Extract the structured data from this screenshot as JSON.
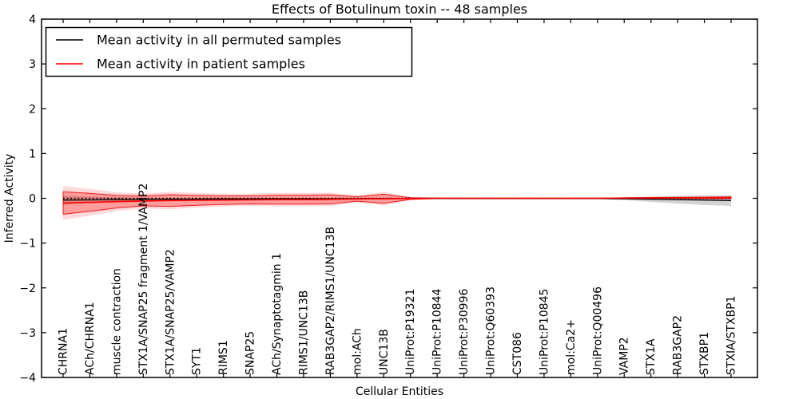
{
  "figure": {
    "background": "#ffffff",
    "frame_color": "#000000"
  },
  "chart_data": {
    "type": "line",
    "title": "Effects of Botulinum toxin -- 48 samples",
    "xlabel": "Cellular Entities",
    "ylabel": "Inferred Activity",
    "ylim": [
      -4,
      4
    ],
    "ytick_values": [
      4,
      3,
      2,
      1,
      0,
      -1,
      -2,
      -3,
      -4
    ],
    "grid": false,
    "legend_position": "upper-left",
    "categories": [
      "CHRNA1",
      "ACh/CHRNA1",
      "muscle contraction",
      "STX1A/SNAP25 fragment 1/VAMP2",
      "STX1A/SNAP25/VAMP2",
      "SYT1",
      "RIMS1",
      "SNAP25",
      "ACh/Synaptotagmin 1",
      "RIMS1/UNC13B",
      "RAB3GAP2/RIMS1/UNC13B",
      "mol:ACh",
      "UNC13B",
      "UniProt:P19321",
      "UniProt:P10844",
      "UniProt:P30996",
      "UniProt:Q60393",
      "CST086",
      "UniProt:P10845",
      "mol:Ca2+",
      "UniProt:Q00496",
      "VAMP2",
      "STX1A",
      "RAB3GAP2",
      "STXBP1",
      "STXIA/STXBP1"
    ],
    "series": [
      {
        "name": "Mean activity in all permuted samples",
        "color": "#000000",
        "line_style": "solid",
        "band_fill": "rgba(128,128,128,0.35)",
        "values": [
          -0.04,
          -0.035,
          -0.03,
          -0.025,
          -0.02,
          -0.02,
          -0.015,
          -0.015,
          -0.01,
          -0.01,
          -0.01,
          -0.008,
          -0.006,
          -0.005,
          -0.005,
          -0.005,
          -0.005,
          -0.005,
          -0.005,
          -0.005,
          -0.006,
          -0.01,
          -0.02,
          -0.03,
          -0.04,
          -0.05
        ],
        "std": [
          0.1,
          0.07,
          0.05,
          0.04,
          0.035,
          0.03,
          0.025,
          0.02,
          0.02,
          0.015,
          0.015,
          0.012,
          0.01,
          0.008,
          0.006,
          0.005,
          0.005,
          0.005,
          0.005,
          0.006,
          0.01,
          0.03,
          0.06,
          0.09,
          0.11,
          0.12
        ]
      },
      {
        "name": "Mean activity in patient samples",
        "color": "#ff0000",
        "line_style": "solid",
        "band_fill": "rgba(255,0,0,0.28)",
        "band_halo_fill": "rgba(255,0,0,0.15)",
        "band_edge": "rgba(230,0,0,0.85)",
        "values": [
          -0.105,
          -0.09,
          -0.075,
          -0.06,
          -0.05,
          -0.045,
          -0.04,
          -0.035,
          -0.03,
          -0.03,
          -0.025,
          -0.015,
          -0.01,
          -0.005,
          0,
          0,
          0,
          0,
          0,
          0,
          0,
          0.005,
          0.008,
          0.01,
          0.01,
          0.012
        ],
        "std": [
          0.25,
          0.2,
          0.14,
          0.11,
          0.13,
          0.11,
          0.095,
          0.09,
          0.1,
          0.1,
          0.1,
          0.05,
          0.1,
          0.02,
          0.008,
          0.005,
          0.005,
          0.005,
          0.005,
          0.005,
          0.005,
          0.005,
          0.008,
          0.01,
          0.015,
          0.02
        ]
      }
    ],
    "zero_line": {
      "value": 0,
      "style": "dotted",
      "color": "#000000"
    }
  }
}
